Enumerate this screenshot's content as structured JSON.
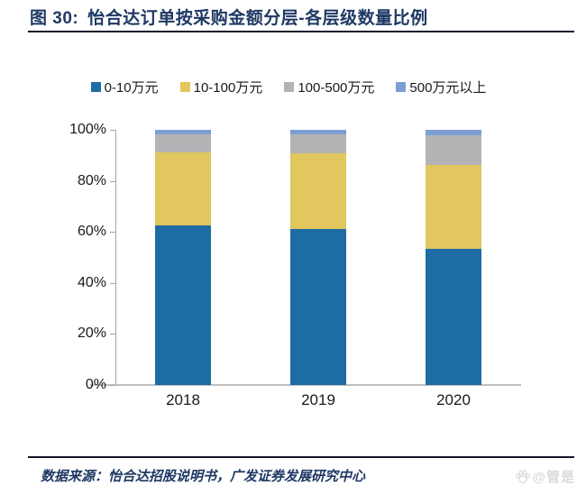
{
  "header": {
    "fig_label": "图 30:",
    "title": "怡合达订单按采购金额分层-各层级数量比例"
  },
  "chart_data": {
    "type": "bar",
    "stacked": true,
    "unit": "%",
    "title": "怡合达订单按采购金额分层-各层级数量比例",
    "categories": [
      "2018",
      "2019",
      "2020"
    ],
    "series": [
      {
        "name": "0-10万元",
        "color": "#1E6CA4",
        "values": [
          62.5,
          61.3,
          53.4
        ]
      },
      {
        "name": "10-100万元",
        "color": "#E2C65E",
        "values": [
          28.5,
          29.5,
          32.9
        ]
      },
      {
        "name": "100-500万元",
        "color": "#B3B3B6",
        "values": [
          7.3,
          7.5,
          11.5
        ]
      },
      {
        "name": "500万元以上",
        "color": "#7D9ED3",
        "values": [
          1.7,
          1.7,
          2.2
        ]
      }
    ],
    "ylim": [
      0,
      100
    ],
    "y_ticks": [
      "0%",
      "20%",
      "40%",
      "60%",
      "80%",
      "100%"
    ],
    "legend_position": "top",
    "grid": false
  },
  "footer": {
    "source": "数据来源：怡合达招股说明书，广发证券发展研究中心",
    "watermark": "@管是"
  },
  "colors": {
    "title_navy": "#1F3864",
    "axis_gray": "#A6A6A6",
    "rule_dark": "#14142b",
    "watermark_gray": "#D9D9D9"
  }
}
